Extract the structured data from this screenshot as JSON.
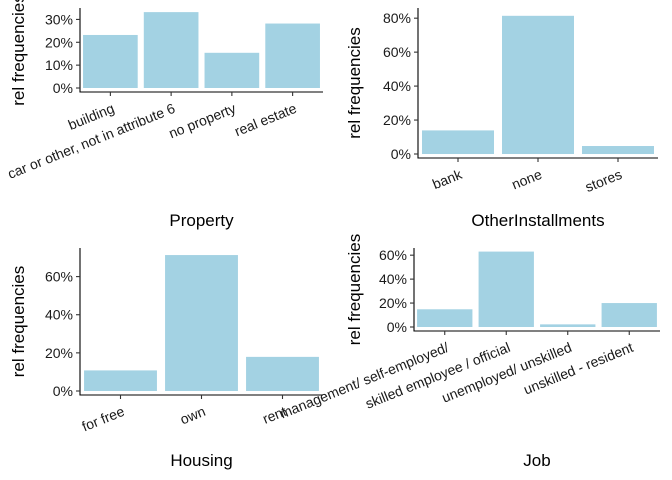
{
  "colors": {
    "bar": "#a3d2e3",
    "axis": "#000000",
    "text": "#1a1a1a"
  },
  "chart_data": [
    {
      "type": "bar",
      "title": "",
      "xlabel": "Property",
      "ylabel": "rel frequencies",
      "categories": [
        "building",
        "car or other, not in attribute 6",
        "no property",
        "real estate"
      ],
      "values": [
        0.232,
        0.332,
        0.154,
        0.282
      ],
      "ylim": [
        0,
        0.35
      ],
      "yticks": [
        0,
        0.1,
        0.2,
        0.3
      ],
      "ytick_labels": [
        "0%",
        "10%",
        "20%",
        "30%"
      ],
      "grid": false
    },
    {
      "type": "bar",
      "title": "",
      "xlabel": "OtherInstallments",
      "ylabel": "rel frequencies",
      "categories": [
        "bank",
        "none",
        "stores"
      ],
      "values": [
        0.139,
        0.814,
        0.047
      ],
      "ylim": [
        0,
        0.86
      ],
      "yticks": [
        0,
        0.2,
        0.4,
        0.6,
        0.8
      ],
      "ytick_labels": [
        "0%",
        "20%",
        "40%",
        "60%",
        "80%"
      ],
      "grid": false
    },
    {
      "type": "bar",
      "title": "",
      "xlabel": "Housing",
      "ylabel": "rel frequencies",
      "categories": [
        "for free",
        "own",
        "rent"
      ],
      "values": [
        0.108,
        0.713,
        0.179
      ],
      "ylim": [
        0,
        0.75
      ],
      "yticks": [
        0,
        0.2,
        0.4,
        0.6
      ],
      "ytick_labels": [
        "0%",
        "20%",
        "40%",
        "60%"
      ],
      "grid": false
    },
    {
      "type": "bar",
      "title": "",
      "xlabel": "Job",
      "ylabel": "rel frequencies",
      "categories": [
        "management/ self-employed/",
        "skilled employee / official",
        "unemployed/ unskilled",
        "unskilled - resident"
      ],
      "values": [
        0.148,
        0.63,
        0.022,
        0.2
      ],
      "ylim": [
        0,
        0.66
      ],
      "yticks": [
        0,
        0.2,
        0.4,
        0.6
      ],
      "ytick_labels": [
        "0%",
        "20%",
        "40%",
        "60%"
      ],
      "grid": false
    }
  ]
}
